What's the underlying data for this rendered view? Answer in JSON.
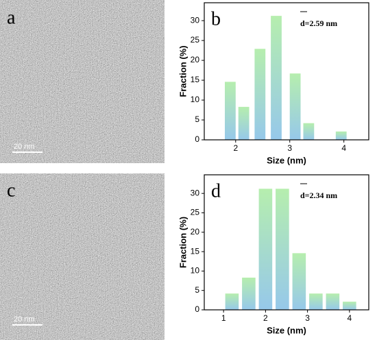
{
  "images": [
    {
      "label": "a",
      "scale_bar": "20 nm"
    },
    {
      "label": "c",
      "scale_bar": "20 nm"
    }
  ],
  "chart_data": [
    {
      "type": "bar",
      "label": "b",
      "annotation": "d=2.59 nm",
      "xlabel": "Size (nm)",
      "ylabel": "Fraction (%)",
      "x": [
        1.9,
        2.15,
        2.45,
        2.75,
        3.1,
        3.35,
        3.95
      ],
      "values": [
        14.6,
        8.3,
        22.9,
        31.2,
        16.7,
        4.2,
        2.1
      ],
      "colors": [
        "#b6eeae",
        "#96c8ea"
      ],
      "xlim": [
        1.42,
        4.46
      ],
      "xticks": [
        2,
        3,
        4
      ],
      "ylim": [
        0,
        34.5
      ],
      "yticks": [
        0,
        5,
        10,
        15,
        20,
        25,
        30
      ]
    },
    {
      "type": "bar",
      "label": "d",
      "annotation": "d=2.34 nm",
      "xlabel": "Size (nm)",
      "ylabel": "Fraction (%)",
      "x": [
        1.2,
        1.6,
        2.0,
        2.4,
        2.8,
        3.2,
        3.6,
        4.0
      ],
      "values": [
        4.2,
        8.3,
        31.2,
        31.2,
        14.6,
        4.2,
        4.2,
        2.1
      ],
      "colors": [
        "#b6eeae",
        "#96c8ea"
      ],
      "xlim": [
        0.54,
        4.46
      ],
      "xticks": [
        1,
        2,
        3,
        4
      ],
      "ylim": [
        0,
        34.8
      ],
      "yticks": [
        0,
        5,
        10,
        15,
        20,
        25,
        30
      ]
    }
  ]
}
